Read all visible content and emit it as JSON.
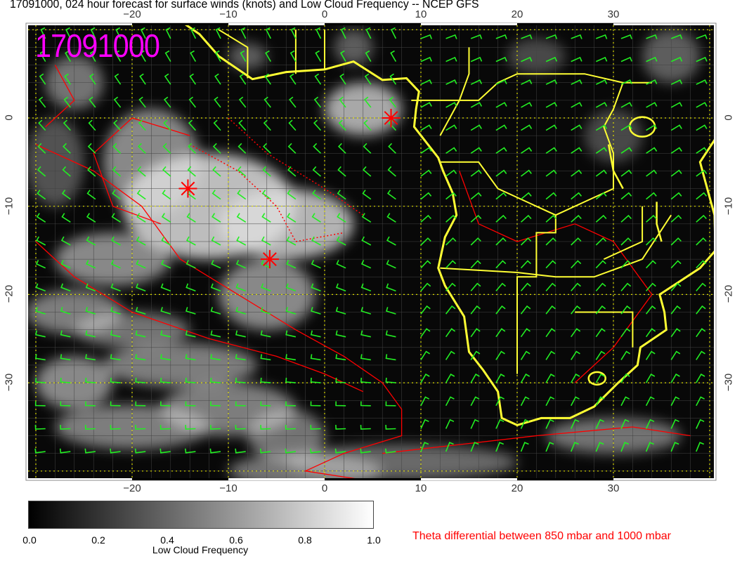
{
  "title": "17091000, 024 hour forecast for surface winds (knots) and Low Cloud Frequency -- NCEP GFS",
  "stamp": "17091000",
  "axes": {
    "lon_ticks": [
      "−20",
      "−10",
      "0",
      "10",
      "20",
      "30"
    ],
    "lon_values": [
      -20,
      -10,
      0,
      10,
      20,
      30
    ],
    "lat_ticks": [
      "0",
      "−10",
      "−20",
      "−30"
    ],
    "lat_values": [
      0,
      -10,
      -20,
      -30
    ],
    "lon_range": [
      -31,
      40.5
    ],
    "lat_range": [
      10.7,
      -41
    ]
  },
  "colorbar": {
    "title": "Low Cloud Frequency",
    "labels": [
      "0.0",
      "0.2",
      "0.4",
      "0.6",
      "0.8",
      "1.0"
    ],
    "range": [
      0,
      1
    ]
  },
  "contour_legend": "Theta differential between 850 mbar and 1000 mbar",
  "markers": [
    {
      "symbol": "asterisk",
      "lon": -14.2,
      "lat": -8
    },
    {
      "symbol": "asterisk",
      "lon": -5.7,
      "lat": -16
    },
    {
      "symbol": "asterisk",
      "lon": 6.9,
      "lat": 0
    }
  ],
  "colors": {
    "coastline": "#ffff33",
    "wind_barbs": "#22ee22",
    "contours": "#ff0000",
    "stamp": "#ff00ff",
    "markers": "#ff0000"
  }
}
